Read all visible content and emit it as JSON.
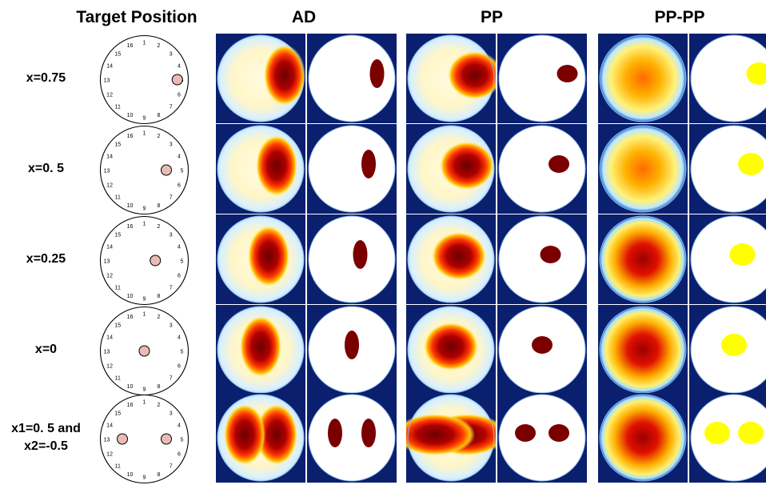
{
  "headers": {
    "target": "Target Position",
    "ad": "AD",
    "pp": "PP",
    "pppp": "PP-PP"
  },
  "rows": [
    {
      "label_lines": [
        "x=0.75"
      ],
      "targets": [
        [
          0.75,
          0
        ]
      ]
    },
    {
      "label_lines": [
        "x=0. 5"
      ],
      "targets": [
        [
          0.5,
          0
        ]
      ]
    },
    {
      "label_lines": [
        "x=0.25"
      ],
      "targets": [
        [
          0.25,
          0
        ]
      ]
    },
    {
      "label_lines": [
        "x=0"
      ],
      "targets": [
        [
          0,
          0
        ]
      ]
    },
    {
      "label_lines": [
        "x1=0. 5 and",
        "x2=-0.5"
      ],
      "targets": [
        [
          0.5,
          0
        ],
        [
          -0.5,
          0
        ]
      ]
    }
  ],
  "electrode_labels": [
    "1",
    "2",
    "3",
    "4",
    "5",
    "6",
    "7",
    "8",
    "9",
    "10",
    "11",
    "12",
    "13",
    "14",
    "15",
    "16"
  ],
  "colors": {
    "inclusion_fill": "#e8bcb4",
    "tile_background": "#0a1f6e",
    "dark_red": "#7a0000",
    "yellow": "#ffff00"
  }
}
